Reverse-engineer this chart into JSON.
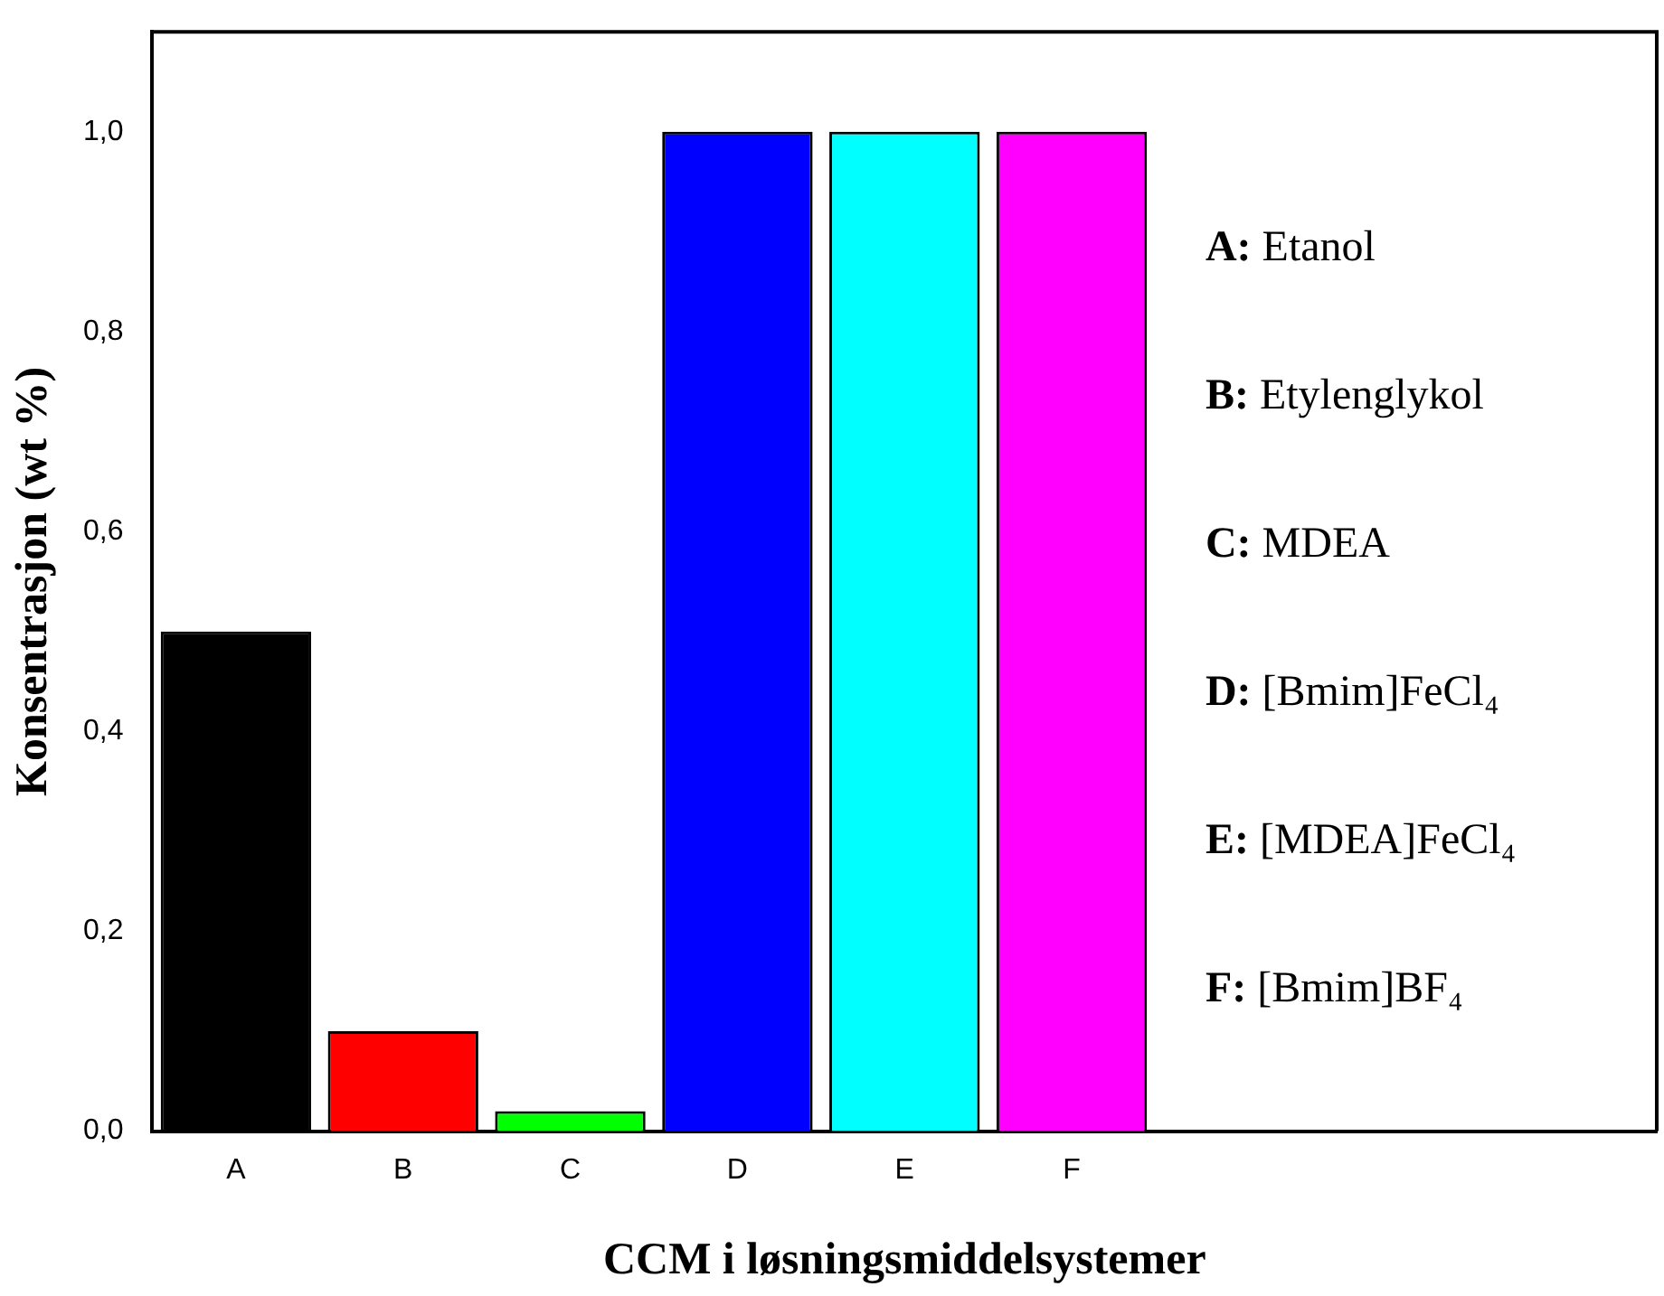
{
  "chart_data": {
    "type": "bar",
    "xlabel": "CCM i løsningsmiddelsystemer",
    "ylabel": "Konsentrasjon (wt %)",
    "categories": [
      "A",
      "B",
      "C",
      "D",
      "E",
      "F",
      null,
      null,
      null
    ],
    "values": [
      0.5,
      0.1,
      0.02,
      1.0,
      1.0,
      1.0,
      null,
      null,
      null
    ],
    "colors": [
      "#000000",
      "#ff0000",
      "#00ff00",
      "#0000ff",
      "#00ffff",
      "#ff00ff",
      null,
      null,
      null
    ],
    "ylim": [
      0,
      1.1
    ],
    "yticks": [
      {
        "value": 0,
        "label": "0,0"
      },
      {
        "value": 0.2,
        "label": "0,2"
      },
      {
        "value": 0.4,
        "label": "0,4"
      },
      {
        "value": 0.6,
        "label": "0,6"
      },
      {
        "value": 0.8,
        "label": "0,8"
      },
      {
        "value": 1.0,
        "label": "1,0"
      }
    ],
    "grid": false,
    "legend": false,
    "annotations": [
      "A: Etanol",
      "B: Etylenglykol",
      "C: MDEA",
      "D: [Bmim]FeCl₄",
      "E: [MDEA]FeCl₄",
      "F: [Bmim]BF₄"
    ]
  }
}
